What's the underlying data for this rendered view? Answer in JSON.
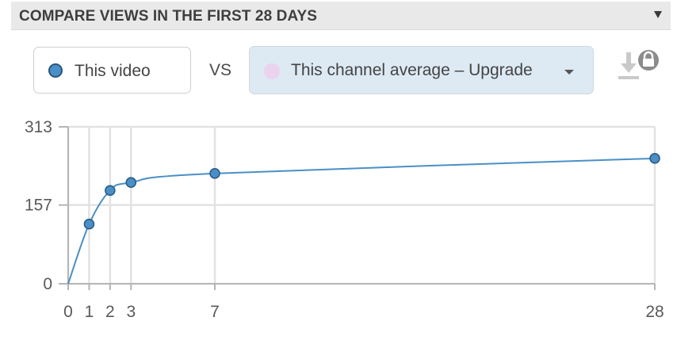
{
  "header": {
    "title": "COMPARE VIEWS IN THE FIRST 28 DAYS",
    "collapse_icon": "triangle-down-icon"
  },
  "compare": {
    "primary_label": "This video",
    "primary_color": "#4a8fc7",
    "vs_label": "VS",
    "secondary_label": "This channel average  –  Upgrade",
    "secondary_color": "#ebd3ef",
    "download_icon": "download-locked-icon"
  },
  "chart_data": {
    "type": "line",
    "title": "",
    "xlabel": "",
    "ylabel": "",
    "x_ticks": [
      0,
      1,
      2,
      3,
      7,
      28
    ],
    "y_ticks": [
      0,
      157,
      313
    ],
    "xlim": [
      0,
      28
    ],
    "ylim": [
      0,
      313
    ],
    "grid": true,
    "series": [
      {
        "color": "#4a8fc7",
        "x": [
          0,
          1,
          2,
          3,
          7,
          28
        ],
        "y": [
          0,
          119,
          186,
          202,
          220,
          250
        ]
      }
    ]
  }
}
